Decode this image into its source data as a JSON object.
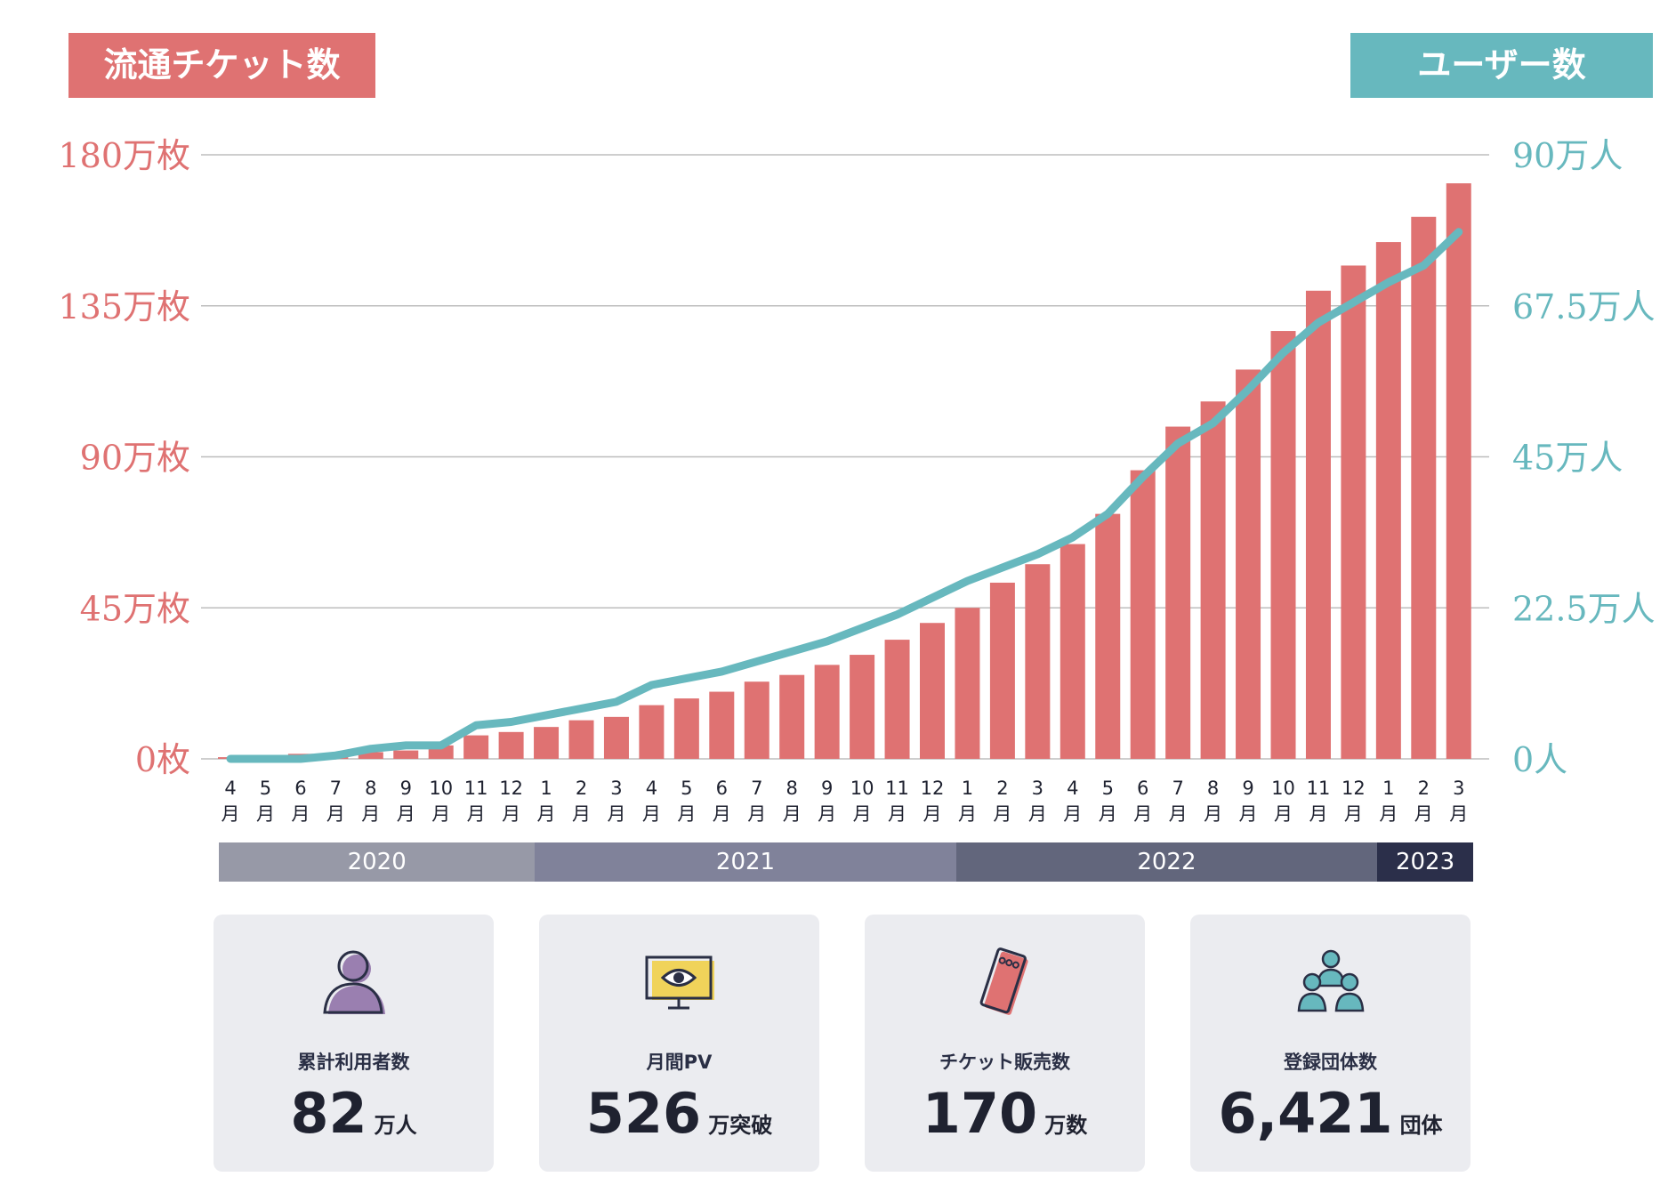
{
  "header": {
    "left_tag": "流通チケット数",
    "right_tag": "ユーザー数"
  },
  "colors": {
    "bar": "#df7272",
    "line": "#67b8be",
    "left_axis_text": "#df7272",
    "right_axis_text": "#67b8be",
    "grid": "#bdbdbd",
    "year_2020": "#9799a7",
    "year_2021": "#80829a",
    "year_2022": "#62667c",
    "year_2023": "#2b2f4a",
    "card_bg": "#ebecf0"
  },
  "chart_data": {
    "type": "bar",
    "y_left": {
      "ticks": [
        "0枚",
        "45万枚",
        "90万枚",
        "135万枚",
        "180万枚"
      ],
      "ylim": [
        0,
        180
      ]
    },
    "y_right": {
      "ticks": [
        "0人",
        "22.5万人",
        "45万人",
        "67.5万人",
        "90万人"
      ],
      "ylim": [
        0,
        90
      ]
    },
    "month_unit": "月",
    "categories": [
      "4",
      "5",
      "6",
      "7",
      "8",
      "9",
      "10",
      "11",
      "12",
      "1",
      "2",
      "3",
      "4",
      "5",
      "6",
      "7",
      "8",
      "9",
      "10",
      "11",
      "12",
      "1",
      "2",
      "3",
      "4",
      "5",
      "6",
      "7",
      "8",
      "9",
      "10",
      "11",
      "12",
      "1",
      "2",
      "3"
    ],
    "series": [
      {
        "type": "bar",
        "axis": "left",
        "values": [
          0.5,
          1,
          1.5,
          1.5,
          2,
          2.5,
          4,
          7,
          8,
          9.5,
          11.5,
          12.5,
          16,
          18,
          20,
          23,
          25,
          28,
          31,
          35.5,
          40.5,
          45,
          52.5,
          58,
          64,
          73,
          86,
          99,
          106.5,
          116,
          127.5,
          139.5,
          147,
          154,
          161.5,
          171.5
        ]
      },
      {
        "type": "line",
        "axis": "right",
        "values": [
          0,
          0,
          0,
          0.5,
          1.5,
          2,
          2,
          5,
          5.5,
          6.5,
          7.5,
          8.5,
          11,
          12,
          13,
          14.5,
          16,
          17.5,
          19.5,
          21.5,
          24,
          26.5,
          28.5,
          30.5,
          33,
          36.5,
          42,
          47,
          50,
          55,
          60.5,
          65,
          68,
          71,
          73.5,
          78.5
        ]
      }
    ],
    "years": [
      {
        "label": "2020",
        "count": 9
      },
      {
        "label": "2021",
        "count": 12
      },
      {
        "label": "2022",
        "count": 12
      },
      {
        "label": "2023",
        "count": 3
      }
    ]
  },
  "stats": [
    {
      "label": "累計利用者数",
      "value": "82",
      "unit": "万人",
      "icon": "person-icon"
    },
    {
      "label": "月間PV",
      "value": "526",
      "unit": "万突破",
      "icon": "monitor-eye-icon"
    },
    {
      "label": "チケット販売数",
      "value": "170",
      "unit": "万数",
      "icon": "ticket-icon"
    },
    {
      "label": "登録団体数",
      "value": "6,421",
      "unit": "団体",
      "icon": "group-icon"
    }
  ]
}
